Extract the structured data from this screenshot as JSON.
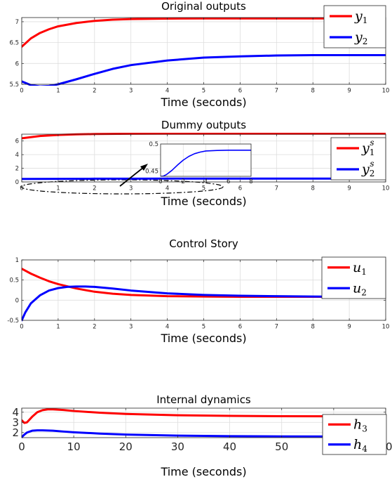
{
  "chart_data": [
    {
      "type": "line",
      "title": "Original outputs",
      "xlabel": "Time (seconds)",
      "ylabel": "",
      "xlim": [
        0,
        10
      ],
      "ylim": [
        5.5,
        7.1
      ],
      "xticks": [
        "0",
        "1",
        "2",
        "3",
        "4",
        "5",
        "6",
        "7",
        "8",
        "9",
        "10"
      ],
      "yticks": [
        "5.5",
        "6",
        "6.5",
        "7"
      ],
      "grid": true,
      "legend_position": "top-right",
      "series": [
        {
          "name": "y1",
          "label_base": "y",
          "label_sub": "1",
          "label_sup": "",
          "color": "#ff0000",
          "x": [
            0,
            0.25,
            0.5,
            0.75,
            1,
            1.5,
            2,
            2.5,
            3,
            4,
            5,
            6,
            7,
            8,
            9,
            10
          ],
          "y": [
            6.4,
            6.6,
            6.73,
            6.82,
            6.89,
            6.97,
            7.02,
            7.05,
            7.065,
            7.075,
            7.078,
            7.08,
            7.08,
            7.08,
            7.08,
            7.08
          ]
        },
        {
          "name": "y2",
          "label_base": "y",
          "label_sub": "2",
          "label_sup": "",
          "color": "#0000ff",
          "x": [
            0,
            0.25,
            0.5,
            0.75,
            1,
            1.5,
            2,
            2.5,
            3,
            4,
            5,
            6,
            7,
            8,
            9,
            10
          ],
          "y": [
            5.57,
            5.48,
            5.45,
            5.46,
            5.5,
            5.62,
            5.75,
            5.87,
            5.96,
            6.07,
            6.14,
            6.17,
            6.19,
            6.2,
            6.2,
            6.2
          ]
        }
      ]
    },
    {
      "type": "line",
      "title": "Dummy outputs",
      "xlabel": "Time (seconds)",
      "ylabel": "",
      "xlim": [
        0,
        10
      ],
      "ylim": [
        0,
        7
      ],
      "xticks": [
        "0",
        "1",
        "2",
        "3",
        "4",
        "5",
        "6",
        "7",
        "8",
        "9",
        "10"
      ],
      "yticks": [
        "0",
        "2",
        "4",
        "6"
      ],
      "grid": true,
      "legend_position": "top-right",
      "series": [
        {
          "name": "y1s",
          "label_base": "y",
          "label_sub": "1",
          "label_sup": "s",
          "color": "#ff0000",
          "x": [
            0,
            0.5,
            1,
            1.5,
            2,
            3,
            4,
            5,
            6,
            7,
            8,
            9,
            10
          ],
          "y": [
            6.4,
            6.73,
            6.89,
            6.97,
            7.02,
            7.065,
            7.075,
            7.078,
            7.08,
            7.08,
            7.08,
            7.08,
            7.08
          ]
        },
        {
          "name": "y2s",
          "label_base": "y",
          "label_sub": "2",
          "label_sup": "s",
          "color": "#0000ff",
          "x": [
            0,
            1,
            2,
            3,
            4,
            5,
            6,
            7,
            8,
            9,
            10
          ],
          "y": [
            0.44,
            0.45,
            0.47,
            0.48,
            0.485,
            0.487,
            0.488,
            0.488,
            0.488,
            0.488,
            0.488
          ]
        }
      ],
      "inset": {
        "xlim": [
          0,
          8
        ],
        "ylim": [
          0.44,
          0.5
        ],
        "xticks": [
          "0",
          "2",
          "4",
          "6",
          "8"
        ],
        "yticks": [
          "0.45",
          "0.5"
        ],
        "series": [
          {
            "color": "#0000ff",
            "x": [
              0,
              0.25,
              0.5,
              1,
              1.5,
              2,
              2.5,
              3,
              3.5,
              4,
              5,
              6,
              7,
              8
            ],
            "y": [
              0.44,
              0.4405,
              0.443,
              0.451,
              0.461,
              0.47,
              0.477,
              0.482,
              0.485,
              0.487,
              0.488,
              0.4885,
              0.4885,
              0.4885
            ]
          }
        ]
      }
    },
    {
      "type": "line",
      "title": "Control Story",
      "xlabel": "Time (seconds)",
      "ylabel": "",
      "xlim": [
        0,
        10
      ],
      "ylim": [
        -0.5,
        1
      ],
      "xticks": [
        "0",
        "1",
        "2",
        "3",
        "4",
        "5",
        "6",
        "7",
        "8",
        "9",
        "10"
      ],
      "yticks": [
        "-0.5",
        "0",
        "0.5",
        "1"
      ],
      "grid": true,
      "legend_position": "top-right",
      "series": [
        {
          "name": "u1",
          "label_base": "u",
          "label_sub": "1",
          "label_sup": "",
          "color": "#ff0000",
          "x": [
            0,
            0.25,
            0.5,
            0.75,
            1,
            1.5,
            2,
            2.5,
            3,
            4,
            5,
            6,
            7,
            8,
            9,
            10
          ],
          "y": [
            0.78,
            0.66,
            0.56,
            0.47,
            0.4,
            0.29,
            0.21,
            0.16,
            0.13,
            0.1,
            0.09,
            0.085,
            0.085,
            0.085,
            0.085,
            0.085
          ]
        },
        {
          "name": "u2",
          "label_base": "u",
          "label_sub": "2",
          "label_sup": "",
          "color": "#0000ff",
          "x": [
            0,
            0.1,
            0.25,
            0.5,
            0.75,
            1,
            1.25,
            1.5,
            1.75,
            2,
            2.5,
            3,
            4,
            5,
            6,
            7,
            8,
            9,
            10
          ],
          "y": [
            -0.5,
            -0.3,
            -0.08,
            0.12,
            0.24,
            0.3,
            0.33,
            0.34,
            0.34,
            0.33,
            0.29,
            0.24,
            0.17,
            0.13,
            0.11,
            0.1,
            0.09,
            0.085,
            0.085
          ]
        }
      ]
    },
    {
      "type": "line",
      "title": "Internal dynamics",
      "xlabel": "Time (seconds)",
      "ylabel": "",
      "xlim": [
        0,
        70
      ],
      "ylim": [
        1.5,
        4.4
      ],
      "xticks": [
        "0",
        "10",
        "20",
        "30",
        "40",
        "50",
        "60",
        "70"
      ],
      "yticks": [
        "2",
        "3",
        "4"
      ],
      "grid": true,
      "legend_position": "right",
      "series": [
        {
          "name": "h3",
          "label_base": "h",
          "label_sub": "3",
          "label_sup": "",
          "color": "#ff0000",
          "x": [
            0,
            0.5,
            1,
            2,
            3,
            4,
            5,
            6,
            8,
            10,
            15,
            20,
            30,
            40,
            50,
            60,
            70
          ],
          "y": [
            3.2,
            2.95,
            3.0,
            3.55,
            4.0,
            4.2,
            4.28,
            4.28,
            4.22,
            4.12,
            3.95,
            3.83,
            3.7,
            3.64,
            3.61,
            3.6,
            3.6
          ]
        },
        {
          "name": "h4",
          "label_base": "h",
          "label_sub": "4",
          "label_sup": "",
          "color": "#0000ff",
          "x": [
            0,
            0.5,
            1,
            2,
            3,
            4,
            6,
            8,
            10,
            15,
            20,
            30,
            40,
            50,
            60,
            70
          ],
          "y": [
            1.55,
            1.8,
            2.0,
            2.18,
            2.22,
            2.22,
            2.18,
            2.1,
            2.03,
            1.9,
            1.8,
            1.7,
            1.65,
            1.62,
            1.61,
            1.6
          ]
        }
      ]
    }
  ]
}
